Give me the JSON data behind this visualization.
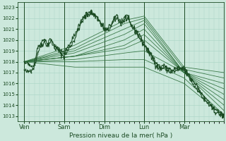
{
  "title": "Pression niveau de la mer( hPa )",
  "ylabel_ticks": [
    1013,
    1014,
    1015,
    1016,
    1017,
    1018,
    1019,
    1020,
    1021,
    1022,
    1023
  ],
  "ylim": [
    1012.5,
    1023.5
  ],
  "day_labels": [
    "Ven",
    "Sam",
    "Dim",
    "Lun",
    "Mar"
  ],
  "day_positions": [
    0,
    24,
    48,
    72,
    96
  ],
  "xlim": [
    -4,
    120
  ],
  "bg_color": "#cce8dc",
  "grid_color": "#a8d4c4",
  "line_color": "#2d6e3a",
  "dark_line_color": "#1a4a22",
  "fan_curves": [
    {
      "points": [
        [
          0,
          1018.0
        ],
        [
          30,
          1019.5
        ],
        [
          60,
          1021.8
        ],
        [
          72,
          1022.2
        ],
        [
          96,
          1017.5
        ],
        [
          120,
          1017.0
        ]
      ]
    },
    {
      "points": [
        [
          0,
          1018.0
        ],
        [
          30,
          1019.2
        ],
        [
          60,
          1021.5
        ],
        [
          72,
          1022.0
        ],
        [
          96,
          1017.3
        ],
        [
          120,
          1016.5
        ]
      ]
    },
    {
      "points": [
        [
          0,
          1018.0
        ],
        [
          30,
          1019.0
        ],
        [
          60,
          1021.0
        ],
        [
          72,
          1021.8
        ],
        [
          96,
          1017.0
        ],
        [
          120,
          1016.0
        ]
      ]
    },
    {
      "points": [
        [
          0,
          1018.0
        ],
        [
          30,
          1018.8
        ],
        [
          60,
          1020.5
        ],
        [
          72,
          1021.5
        ],
        [
          96,
          1017.0
        ],
        [
          120,
          1015.5
        ]
      ]
    },
    {
      "points": [
        [
          0,
          1018.0
        ],
        [
          30,
          1018.5
        ],
        [
          60,
          1020.0
        ],
        [
          72,
          1021.0
        ],
        [
          96,
          1017.0
        ],
        [
          120,
          1015.0
        ]
      ]
    },
    {
      "points": [
        [
          0,
          1018.0
        ],
        [
          30,
          1018.5
        ],
        [
          60,
          1019.5
        ],
        [
          72,
          1020.5
        ],
        [
          96,
          1017.0
        ],
        [
          120,
          1014.5
        ]
      ]
    },
    {
      "points": [
        [
          0,
          1018.0
        ],
        [
          30,
          1018.5
        ],
        [
          60,
          1019.2
        ],
        [
          72,
          1020.0
        ],
        [
          96,
          1017.0
        ],
        [
          120,
          1014.0
        ]
      ]
    },
    {
      "points": [
        [
          0,
          1018.0
        ],
        [
          30,
          1018.2
        ],
        [
          60,
          1018.8
        ],
        [
          72,
          1019.0
        ],
        [
          96,
          1017.0
        ],
        [
          120,
          1013.5
        ]
      ]
    },
    {
      "points": [
        [
          0,
          1018.0
        ],
        [
          30,
          1018.0
        ],
        [
          60,
          1018.2
        ],
        [
          72,
          1018.2
        ],
        [
          96,
          1016.5
        ],
        [
          120,
          1013.1
        ]
      ]
    },
    {
      "points": [
        [
          0,
          1018.0
        ],
        [
          30,
          1017.5
        ],
        [
          60,
          1017.5
        ],
        [
          72,
          1017.5
        ],
        [
          96,
          1016.0
        ],
        [
          120,
          1013.0
        ]
      ]
    }
  ],
  "main_curve": [
    [
      0,
      1017.2
    ],
    [
      2,
      1017.0
    ],
    [
      4,
      1017.3
    ],
    [
      6,
      1017.5
    ],
    [
      8,
      1018.8
    ],
    [
      10,
      1019.5
    ],
    [
      12,
      1019.8
    ],
    [
      14,
      1019.5
    ],
    [
      16,
      1019.9
    ],
    [
      18,
      1019.3
    ],
    [
      20,
      1019.1
    ],
    [
      22,
      1018.7
    ],
    [
      24,
      1018.5
    ],
    [
      26,
      1019.0
    ],
    [
      28,
      1019.5
    ],
    [
      30,
      1020.0
    ],
    [
      32,
      1020.8
    ],
    [
      34,
      1021.5
    ],
    [
      36,
      1022.0
    ],
    [
      38,
      1022.3
    ],
    [
      40,
      1022.5
    ],
    [
      42,
      1022.3
    ],
    [
      44,
      1022.0
    ],
    [
      46,
      1021.5
    ],
    [
      48,
      1021.0
    ],
    [
      50,
      1020.8
    ],
    [
      52,
      1021.2
    ],
    [
      54,
      1021.8
    ],
    [
      56,
      1022.0
    ],
    [
      58,
      1021.5
    ],
    [
      60,
      1021.8
    ],
    [
      62,
      1022.0
    ],
    [
      64,
      1021.3
    ],
    [
      66,
      1021.0
    ],
    [
      68,
      1020.5
    ],
    [
      70,
      1020.0
    ],
    [
      72,
      1019.5
    ],
    [
      74,
      1019.0
    ],
    [
      76,
      1018.5
    ],
    [
      78,
      1018.0
    ],
    [
      80,
      1017.5
    ],
    [
      82,
      1017.3
    ],
    [
      84,
      1017.5
    ],
    [
      86,
      1017.2
    ],
    [
      88,
      1017.0
    ],
    [
      90,
      1017.1
    ],
    [
      92,
      1017.2
    ],
    [
      94,
      1017.3
    ],
    [
      96,
      1017.2
    ],
    [
      98,
      1016.8
    ],
    [
      100,
      1016.3
    ],
    [
      102,
      1015.8
    ],
    [
      104,
      1015.5
    ],
    [
      106,
      1015.0
    ],
    [
      108,
      1014.5
    ],
    [
      110,
      1014.2
    ],
    [
      112,
      1013.8
    ],
    [
      114,
      1013.5
    ],
    [
      116,
      1013.3
    ],
    [
      118,
      1013.1
    ],
    [
      120,
      1013.0
    ]
  ],
  "main_curve2": [
    [
      0,
      1018.0
    ],
    [
      2,
      1017.8
    ],
    [
      4,
      1017.5
    ],
    [
      6,
      1017.8
    ],
    [
      8,
      1019.2
    ],
    [
      10,
      1019.8
    ],
    [
      12,
      1020.0
    ],
    [
      14,
      1019.6
    ],
    [
      16,
      1020.1
    ],
    [
      18,
      1019.5
    ],
    [
      20,
      1019.3
    ],
    [
      22,
      1019.0
    ],
    [
      24,
      1018.8
    ],
    [
      26,
      1019.3
    ],
    [
      28,
      1019.8
    ],
    [
      30,
      1020.3
    ],
    [
      32,
      1021.0
    ],
    [
      34,
      1021.8
    ],
    [
      36,
      1022.2
    ],
    [
      38,
      1022.5
    ],
    [
      40,
      1022.6
    ],
    [
      42,
      1022.4
    ],
    [
      44,
      1022.1
    ],
    [
      46,
      1021.6
    ],
    [
      48,
      1021.2
    ],
    [
      50,
      1021.0
    ],
    [
      52,
      1021.4
    ],
    [
      54,
      1022.0
    ],
    [
      56,
      1022.2
    ],
    [
      58,
      1021.7
    ],
    [
      60,
      1022.0
    ],
    [
      62,
      1022.2
    ],
    [
      64,
      1021.5
    ],
    [
      66,
      1021.2
    ],
    [
      68,
      1020.7
    ],
    [
      70,
      1020.2
    ],
    [
      72,
      1019.7
    ],
    [
      74,
      1019.2
    ],
    [
      76,
      1018.7
    ],
    [
      78,
      1018.2
    ],
    [
      80,
      1017.7
    ],
    [
      82,
      1017.5
    ],
    [
      84,
      1017.7
    ],
    [
      86,
      1017.4
    ],
    [
      88,
      1017.2
    ],
    [
      90,
      1017.3
    ],
    [
      92,
      1017.4
    ],
    [
      94,
      1017.5
    ],
    [
      96,
      1017.4
    ],
    [
      98,
      1017.0
    ],
    [
      100,
      1016.5
    ],
    [
      102,
      1016.0
    ],
    [
      104,
      1015.7
    ],
    [
      106,
      1015.2
    ],
    [
      108,
      1014.7
    ],
    [
      110,
      1014.4
    ],
    [
      112,
      1014.0
    ],
    [
      114,
      1013.7
    ],
    [
      116,
      1013.5
    ],
    [
      118,
      1013.3
    ],
    [
      120,
      1013.1
    ]
  ]
}
